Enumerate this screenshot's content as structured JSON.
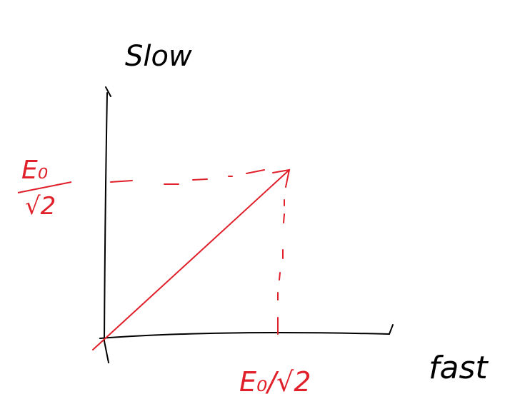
{
  "axes": {
    "y_label": "Slow",
    "x_label": "fast"
  },
  "components": {
    "y_numerator": "E₀",
    "y_denominator": "√2",
    "x_label": "E₀/√2"
  }
}
